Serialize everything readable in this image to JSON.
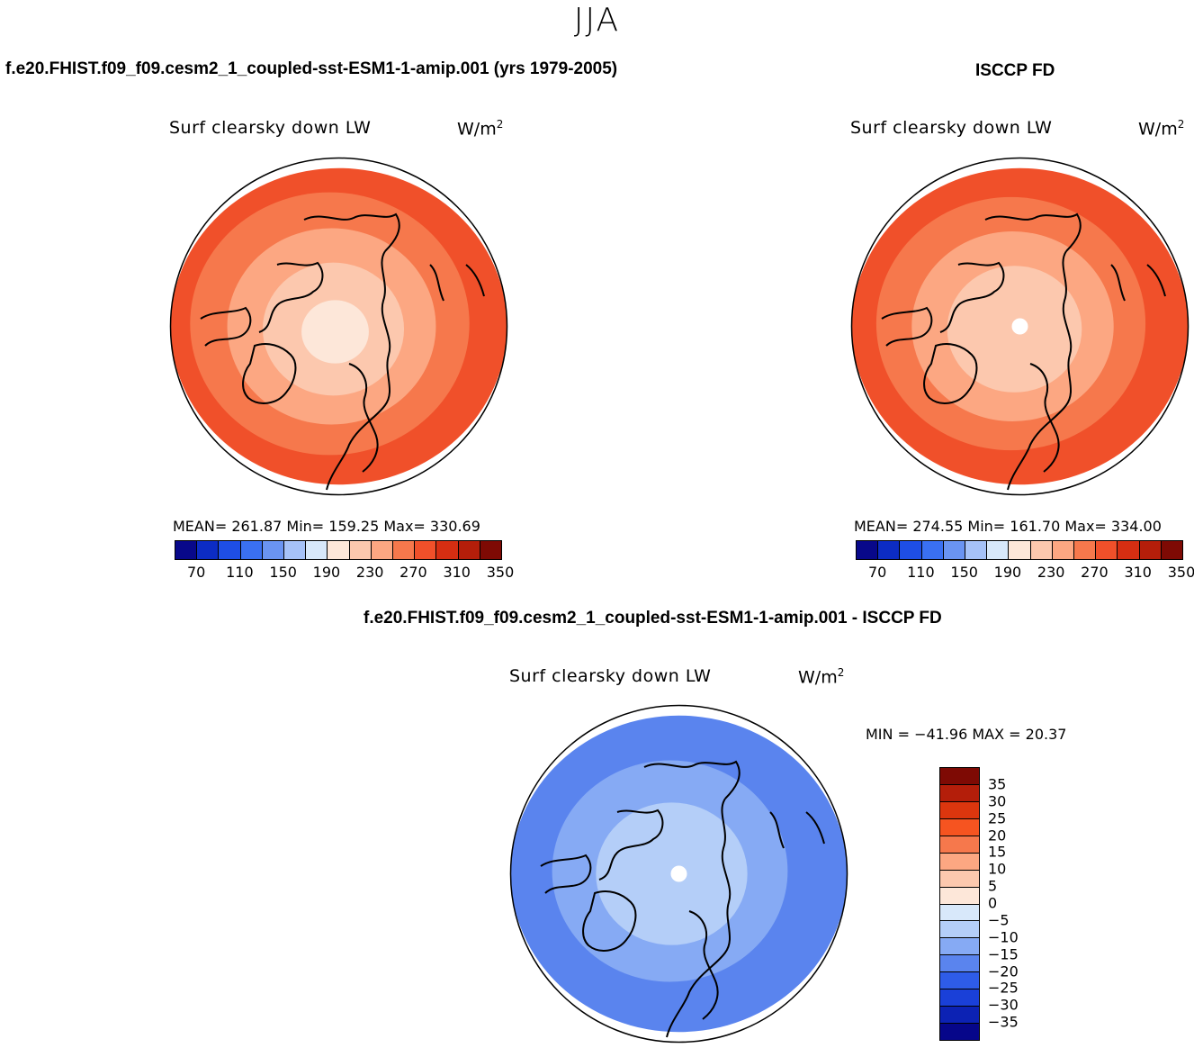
{
  "season": "JJA",
  "panels": {
    "model": {
      "case_title": "f.e20.FHIST.f09_f09.cesm2_1_coupled-sst-ESM1-1-amip.001 (yrs 1979-2005)",
      "variable": "Surf clearsky down LW",
      "units_base": "W/m",
      "units_exp": "2",
      "stats_text": "MEAN= 261.87   Min= 159.25   Max= 330.69"
    },
    "obs": {
      "case_title": "ISCCP FD",
      "variable": "Surf clearsky down LW",
      "units_base": "W/m",
      "units_exp": "2",
      "stats_text": "MEAN= 274.55   Min= 161.70   Max= 334.00"
    },
    "diff": {
      "case_title": "f.e20.FHIST.f09_f09.cesm2_1_coupled-sst-ESM1-1-amip.001 - ISCCP FD",
      "variable": "Surf clearsky down LW",
      "units_base": "W/m",
      "units_exp": "2",
      "stats_text": "MIN = −41.96  MAX =   20.37"
    }
  },
  "abs_colorbar": {
    "colors": [
      "#08088a",
      "#0c2cc4",
      "#1e4ee6",
      "#3a70f2",
      "#6a94f2",
      "#a6c2f8",
      "#d8e8fa",
      "#fde7d9",
      "#fcc8ae",
      "#fca782",
      "#f6784c",
      "#f0502a",
      "#d62e12",
      "#b41e0a",
      "#7e0a04"
    ],
    "labels": [
      "70",
      "110",
      "150",
      "190",
      "230",
      "270",
      "310",
      "350"
    ]
  },
  "diff_colorbar": {
    "colors": [
      "#7e0a04",
      "#b41e0a",
      "#dc360e",
      "#f65420",
      "#f6784c",
      "#fca782",
      "#fcc8ae",
      "#fde7d9",
      "#d8e8fa",
      "#b4cef8",
      "#86aaf4",
      "#5a84ee",
      "#2e5ce8",
      "#1a40d8",
      "#0c22b4",
      "#06068a"
    ],
    "labels": [
      "35",
      "30",
      "25",
      "20",
      "15",
      "10",
      "5",
      "0",
      "−5",
      "−10",
      "−15",
      "−20",
      "−25",
      "−30",
      "−35"
    ]
  },
  "map_fields": {
    "model": [
      {
        "color": "#f0502a",
        "r": 1.0
      },
      {
        "color": "#f6784c",
        "r": 0.83
      },
      {
        "color": "#fca782",
        "r": 0.62
      },
      {
        "color": "#fcc8ae",
        "r": 0.42
      },
      {
        "color": "#fde7d9",
        "r": 0.2
      }
    ],
    "obs": [
      {
        "color": "#f0502a",
        "r": 1.0
      },
      {
        "color": "#f6784c",
        "r": 0.8
      },
      {
        "color": "#fca782",
        "r": 0.6
      },
      {
        "color": "#fcc8ae",
        "r": 0.4
      }
    ],
    "diff": [
      {
        "color": "#5a84ee",
        "r": 1.0
      },
      {
        "color": "#86aaf4",
        "r": 0.7
      },
      {
        "color": "#b4cef8",
        "r": 0.45
      }
    ]
  }
}
